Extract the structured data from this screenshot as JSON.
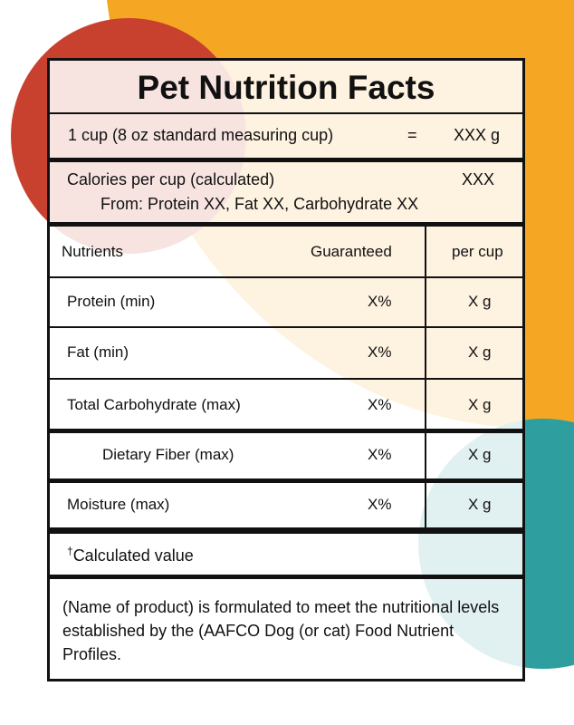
{
  "colors": {
    "orange": "#f5a623",
    "red": "#c8412f",
    "red_overlap": "#c9390a",
    "teal": "#2e9e9e"
  },
  "title": "Pet Nutrition Facts",
  "serving": {
    "label": "1 cup  (8 oz standard measuring cup)",
    "equals": "=",
    "value": "XXX g"
  },
  "calories": {
    "label": "Calories per cup (calculated)",
    "value": "XXX",
    "from": "From:  Protein XX,  Fat XX,  Carbohydrate XX"
  },
  "table": {
    "headers": {
      "nutrients": "Nutrients",
      "guaranteed": "Guaranteed",
      "per_cup": "per cup"
    },
    "rows": [
      {
        "name": "Protein (min)",
        "guaranteed": "X%",
        "per_cup": "X g"
      },
      {
        "name": "Fat (min)",
        "guaranteed": "X%",
        "per_cup": "X g"
      },
      {
        "name": "Total Carbohydrate (max)",
        "guaranteed": "X%",
        "per_cup": "X g"
      },
      {
        "name": "Dietary Fiber (max)",
        "guaranteed": "X%",
        "per_cup": "X g"
      },
      {
        "name": "Moisture (max)",
        "guaranteed": "X%",
        "per_cup": "X g"
      }
    ]
  },
  "footnote": {
    "symbol": "†",
    "text": "Calculated value"
  },
  "statement": "(Name of product) is formulated to meet the nutritional levels established by the (AAFCO Dog (or cat) Food Nutrient Profiles."
}
